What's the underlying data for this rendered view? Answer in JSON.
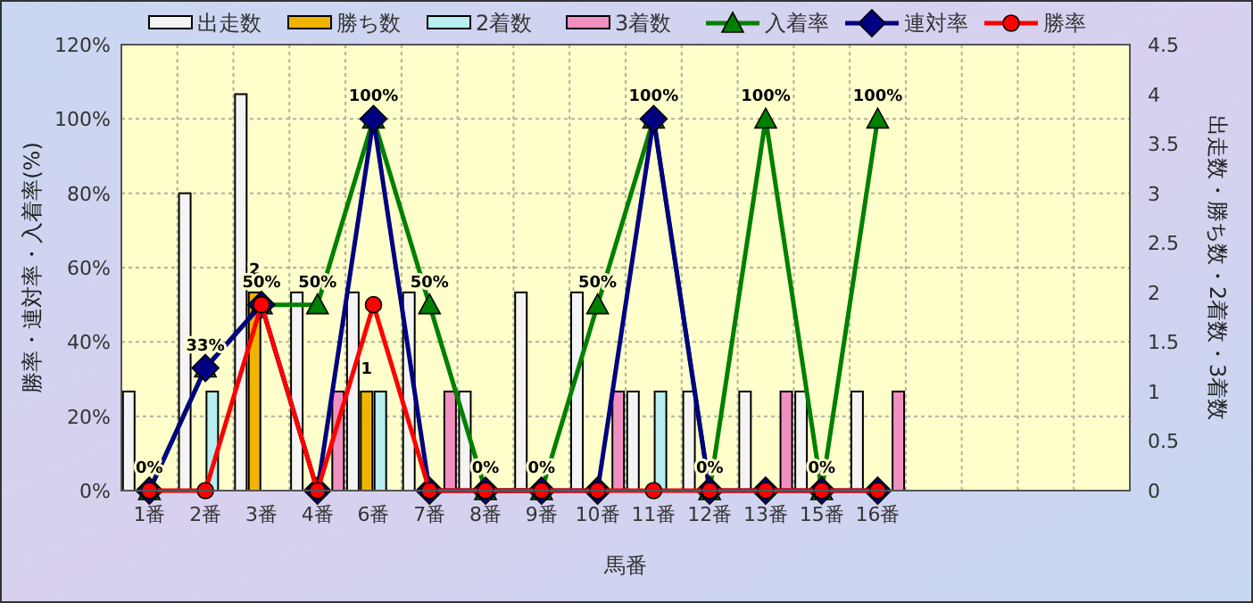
{
  "chart_data": {
    "type": "bar",
    "xlabel": "馬番",
    "ylabel": "勝率・連対率・入着率(%)",
    "y2label": "出走数・勝ち数・2着数・3着数",
    "categories": [
      "1番",
      "2番",
      "3番",
      "4番",
      "6番",
      "7番",
      "8番",
      "9番",
      "10番",
      "11番",
      "12番",
      "13番",
      "15番",
      "16番",
      null,
      null,
      null,
      null
    ],
    "ylim": [
      0,
      120
    ],
    "yticks": [
      {
        "value": 0,
        "label": "0%"
      },
      {
        "value": 20,
        "label": "20%"
      },
      {
        "value": 40,
        "label": "40%"
      },
      {
        "value": 60,
        "label": "60%"
      },
      {
        "value": 80,
        "label": "80%"
      },
      {
        "value": 100,
        "label": "100%"
      },
      {
        "value": 120,
        "label": "120%"
      }
    ],
    "y2lim": [
      0,
      4.5
    ],
    "y2ticks": [
      0,
      0.5,
      1,
      1.5,
      2,
      2.5,
      3,
      3.5,
      4,
      4.5
    ],
    "grid": true,
    "legend": "top",
    "series": [
      {
        "name": "出走数",
        "axis": "y2",
        "color": "#f4f4f4",
        "values": [
          1,
          3,
          4,
          2,
          2,
          2,
          1,
          2,
          2,
          1,
          1,
          1,
          1,
          1,
          null,
          null,
          null,
          null
        ]
      },
      {
        "name": "勝ち数",
        "axis": "y2",
        "color": "#f0b400",
        "values": [
          0,
          0,
          2,
          0,
          1,
          0,
          0,
          0,
          0,
          0,
          0,
          0,
          0,
          0,
          null,
          null,
          null,
          null
        ],
        "value_labels": [
          null,
          null,
          "2",
          null,
          "1",
          null,
          null,
          null,
          null,
          null,
          null,
          null,
          null,
          null,
          null,
          null,
          null,
          null
        ]
      },
      {
        "name": "2着数",
        "axis": "y2",
        "color": "#b8eef0",
        "values": [
          0,
          1,
          0,
          0,
          1,
          0,
          0,
          0,
          0,
          1,
          0,
          0,
          0,
          0,
          null,
          null,
          null,
          null
        ]
      },
      {
        "name": "3着数",
        "axis": "y2",
        "color": "#f090c0",
        "values": [
          0,
          0,
          0,
          1,
          0,
          1,
          0,
          0,
          1,
          0,
          0,
          1,
          0,
          1,
          null,
          null,
          null,
          null
        ]
      },
      {
        "name": "入着率",
        "type": "line",
        "color": "#008000",
        "marker": "triangle",
        "values": [
          0,
          33,
          50,
          50,
          100,
          50,
          0,
          0,
          50,
          100,
          0,
          100,
          0,
          100,
          null,
          null,
          null,
          null
        ],
        "value_labels": [
          "0%",
          "33%",
          "50%",
          "50%",
          "100%",
          "50%",
          "0%",
          "0%",
          "50%",
          "100%",
          "0%",
          "100%",
          "0%",
          "100%",
          null,
          null,
          null,
          null
        ]
      },
      {
        "name": "連対率",
        "type": "line",
        "color": "#000080",
        "marker": "diamond",
        "values": [
          0,
          33,
          50,
          0,
          100,
          0,
          0,
          0,
          0,
          100,
          0,
          0,
          0,
          0,
          null,
          null,
          null,
          null
        ]
      },
      {
        "name": "勝率",
        "type": "line",
        "color": "#ff0000",
        "marker": "circle",
        "values": [
          0,
          0,
          50,
          0,
          50,
          0,
          0,
          0,
          0,
          0,
          0,
          0,
          0,
          0,
          null,
          null,
          null,
          null
        ]
      }
    ]
  }
}
